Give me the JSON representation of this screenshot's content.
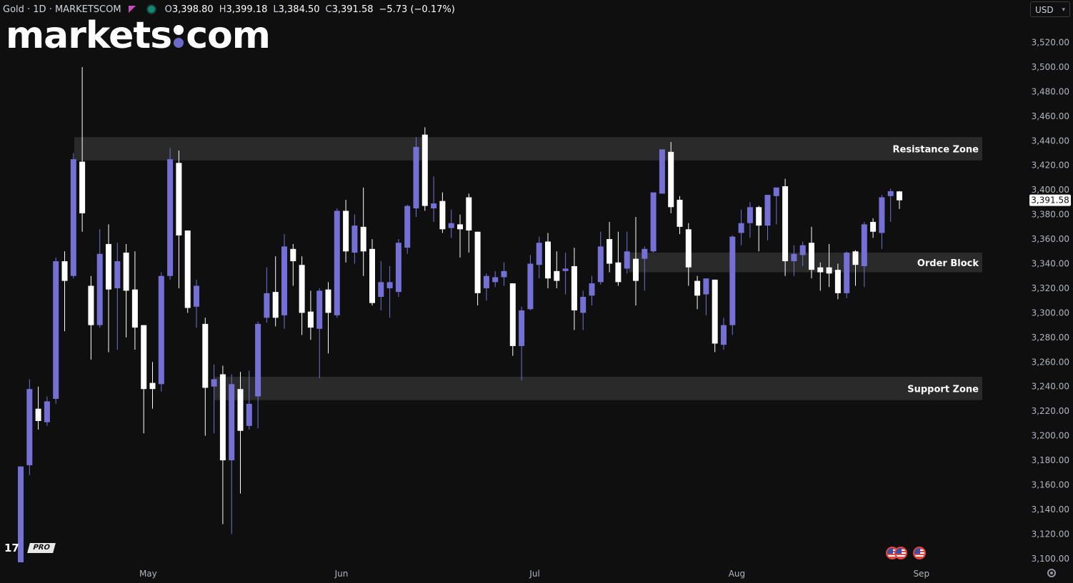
{
  "header": {
    "symbol": "Gold · 1D · MARKETSCOM",
    "open_label": "O",
    "open": "3,398.80",
    "high_label": "H",
    "high": "3,399.18",
    "low_label": "L",
    "low": "3,384.50",
    "close_label": "C",
    "close": "3,391.58",
    "change": "−5.73 (−0.17%)"
  },
  "logo": {
    "left": "markets",
    "right": "com"
  },
  "currency": {
    "value": "USD"
  },
  "watermark": {
    "pro_label": "PRO"
  },
  "colors": {
    "background": "#0f0f0f",
    "up_candle": "#7470d4",
    "down_candle": "#ffffff",
    "zone_fill": "#2a2a2a",
    "axis_text": "#b2b5be",
    "price_tag_bg": "#ffffff",
    "price_tag_text": "#111111"
  },
  "chart_data": {
    "type": "candlestick",
    "title": "Gold · 1D · MARKETSCOM",
    "xlabel": "",
    "ylabel": "",
    "ylim": [
      3096,
      3534
    ],
    "y_ticks": [
      3100,
      3120,
      3140,
      3160,
      3180,
      3200,
      3220,
      3240,
      3260,
      3280,
      3300,
      3320,
      3340,
      3360,
      3380,
      3400,
      3420,
      3440,
      3460,
      3480,
      3500,
      3520
    ],
    "x_ticks": [
      {
        "label": "May",
        "index": 14.5
      },
      {
        "label": "Jun",
        "index": 36.5
      },
      {
        "label": "Jul",
        "index": 58.5
      },
      {
        "label": "Aug",
        "index": 81.5
      },
      {
        "label": "Sep",
        "index": 102.5
      }
    ],
    "last_price": 3391.58,
    "last_price_label": "3,391.58",
    "zones": [
      {
        "name": "Resistance Zone",
        "low": 3424,
        "high": 3443
      },
      {
        "name": "Order Block",
        "low": 3333,
        "high": 3349
      },
      {
        "name": "Support Zone",
        "low": 3229,
        "high": 3248
      }
    ],
    "candles": [
      {
        "o": 3097,
        "h": 3175,
        "l": 3097,
        "c": 3175
      },
      {
        "o": 3176,
        "h": 3246,
        "l": 3168,
        "c": 3238
      },
      {
        "o": 3222,
        "h": 3240,
        "l": 3205,
        "c": 3212
      },
      {
        "o": 3211,
        "h": 3232,
        "l": 3208,
        "c": 3228
      },
      {
        "o": 3230,
        "h": 3345,
        "l": 3226,
        "c": 3342
      },
      {
        "o": 3342,
        "h": 3350,
        "l": 3285,
        "c": 3326
      },
      {
        "o": 3330,
        "h": 3430,
        "l": 3328,
        "c": 3425
      },
      {
        "o": 3423,
        "h": 3500,
        "l": 3366,
        "c": 3381
      },
      {
        "o": 3322,
        "h": 3330,
        "l": 3262,
        "c": 3290
      },
      {
        "o": 3290,
        "h": 3368,
        "l": 3288,
        "c": 3348
      },
      {
        "o": 3356,
        "h": 3372,
        "l": 3268,
        "c": 3319
      },
      {
        "o": 3320,
        "h": 3357,
        "l": 3270,
        "c": 3342
      },
      {
        "o": 3349,
        "h": 3356,
        "l": 3280,
        "c": 3318
      },
      {
        "o": 3319,
        "h": 3350,
        "l": 3270,
        "c": 3288
      },
      {
        "o": 3290,
        "h": 3290,
        "l": 3202,
        "c": 3238
      },
      {
        "o": 3243,
        "h": 3260,
        "l": 3222,
        "c": 3238
      },
      {
        "o": 3242,
        "h": 3333,
        "l": 3236,
        "c": 3330
      },
      {
        "o": 3330,
        "h": 3434,
        "l": 3327,
        "c": 3425
      },
      {
        "o": 3422,
        "h": 3432,
        "l": 3320,
        "c": 3363
      },
      {
        "o": 3367,
        "h": 3367,
        "l": 3300,
        "c": 3304
      },
      {
        "o": 3305,
        "h": 3327,
        "l": 3288,
        "c": 3322
      },
      {
        "o": 3291,
        "h": 3296,
        "l": 3200,
        "c": 3239
      },
      {
        "o": 3240,
        "h": 3258,
        "l": 3202,
        "c": 3246
      },
      {
        "o": 3250,
        "h": 3257,
        "l": 3128,
        "c": 3180
      },
      {
        "o": 3180,
        "h": 3250,
        "l": 3120,
        "c": 3242
      },
      {
        "o": 3238,
        "h": 3252,
        "l": 3153,
        "c": 3204
      },
      {
        "o": 3208,
        "h": 3253,
        "l": 3205,
        "c": 3226
      },
      {
        "o": 3232,
        "h": 3293,
        "l": 3206,
        "c": 3291
      },
      {
        "o": 3296,
        "h": 3337,
        "l": 3292,
        "c": 3316
      },
      {
        "o": 3317,
        "h": 3346,
        "l": 3289,
        "c": 3296
      },
      {
        "o": 3298,
        "h": 3364,
        "l": 3287,
        "c": 3354
      },
      {
        "o": 3352,
        "h": 3356,
        "l": 3322,
        "c": 3342
      },
      {
        "o": 3339,
        "h": 3346,
        "l": 3282,
        "c": 3300
      },
      {
        "o": 3301,
        "h": 3318,
        "l": 3278,
        "c": 3288
      },
      {
        "o": 3287,
        "h": 3320,
        "l": 3247,
        "c": 3318
      },
      {
        "o": 3319,
        "h": 3325,
        "l": 3267,
        "c": 3300
      },
      {
        "o": 3298,
        "h": 3385,
        "l": 3296,
        "c": 3383
      },
      {
        "o": 3383,
        "h": 3392,
        "l": 3341,
        "c": 3350
      },
      {
        "o": 3349,
        "h": 3380,
        "l": 3340,
        "c": 3371
      },
      {
        "o": 3370,
        "h": 3402,
        "l": 3330,
        "c": 3350
      },
      {
        "o": 3352,
        "h": 3360,
        "l": 3306,
        "c": 3308
      },
      {
        "o": 3313,
        "h": 3342,
        "l": 3302,
        "c": 3325
      },
      {
        "o": 3320,
        "h": 3338,
        "l": 3296,
        "c": 3325
      },
      {
        "o": 3317,
        "h": 3360,
        "l": 3313,
        "c": 3357
      },
      {
        "o": 3353,
        "h": 3388,
        "l": 3348,
        "c": 3387
      },
      {
        "o": 3385,
        "h": 3443,
        "l": 3378,
        "c": 3435
      },
      {
        "o": 3445,
        "h": 3451,
        "l": 3383,
        "c": 3387
      },
      {
        "o": 3385,
        "h": 3411,
        "l": 3374,
        "c": 3389
      },
      {
        "o": 3391,
        "h": 3398,
        "l": 3365,
        "c": 3368
      },
      {
        "o": 3369,
        "h": 3384,
        "l": 3361,
        "c": 3373
      },
      {
        "o": 3372,
        "h": 3380,
        "l": 3345,
        "c": 3368
      },
      {
        "o": 3394,
        "h": 3397,
        "l": 3349,
        "c": 3367
      },
      {
        "o": 3366,
        "h": 3366,
        "l": 3306,
        "c": 3316
      },
      {
        "o": 3320,
        "h": 3332,
        "l": 3310,
        "c": 3330
      },
      {
        "o": 3325,
        "h": 3334,
        "l": 3321,
        "c": 3329
      },
      {
        "o": 3329,
        "h": 3341,
        "l": 3322,
        "c": 3334
      },
      {
        "o": 3324,
        "h": 3324,
        "l": 3265,
        "c": 3273
      },
      {
        "o": 3273,
        "h": 3305,
        "l": 3245,
        "c": 3302
      },
      {
        "o": 3303,
        "h": 3347,
        "l": 3302,
        "c": 3340
      },
      {
        "o": 3339,
        "h": 3362,
        "l": 3328,
        "c": 3357
      },
      {
        "o": 3358,
        "h": 3365,
        "l": 3320,
        "c": 3328
      },
      {
        "o": 3334,
        "h": 3350,
        "l": 3320,
        "c": 3326
      },
      {
        "o": 3334,
        "h": 3349,
        "l": 3315,
        "c": 3336
      },
      {
        "o": 3338,
        "h": 3353,
        "l": 3286,
        "c": 3302
      },
      {
        "o": 3300,
        "h": 3318,
        "l": 3286,
        "c": 3313
      },
      {
        "o": 3314,
        "h": 3330,
        "l": 3306,
        "c": 3324
      },
      {
        "o": 3325,
        "h": 3366,
        "l": 3323,
        "c": 3354
      },
      {
        "o": 3360,
        "h": 3374,
        "l": 3333,
        "c": 3340
      },
      {
        "o": 3341,
        "h": 3366,
        "l": 3322,
        "c": 3325
      },
      {
        "o": 3336,
        "h": 3366,
        "l": 3332,
        "c": 3350
      },
      {
        "o": 3344,
        "h": 3378,
        "l": 3306,
        "c": 3326
      },
      {
        "o": 3344,
        "h": 3354,
        "l": 3318,
        "c": 3352
      },
      {
        "o": 3350,
        "h": 3397,
        "l": 3349,
        "c": 3398
      },
      {
        "o": 3397,
        "h": 3432,
        "l": 3397,
        "c": 3433
      },
      {
        "o": 3431,
        "h": 3439,
        "l": 3381,
        "c": 3386
      },
      {
        "o": 3392,
        "h": 3395,
        "l": 3364,
        "c": 3370
      },
      {
        "o": 3368,
        "h": 3373,
        "l": 3322,
        "c": 3337
      },
      {
        "o": 3326,
        "h": 3330,
        "l": 3303,
        "c": 3314
      },
      {
        "o": 3315,
        "h": 3325,
        "l": 3298,
        "c": 3328
      },
      {
        "o": 3327,
        "h": 3327,
        "l": 3268,
        "c": 3275
      },
      {
        "o": 3274,
        "h": 3296,
        "l": 3270,
        "c": 3290
      },
      {
        "o": 3290,
        "h": 3363,
        "l": 3282,
        "c": 3362
      },
      {
        "o": 3365,
        "h": 3384,
        "l": 3355,
        "c": 3373
      },
      {
        "o": 3373,
        "h": 3390,
        "l": 3361,
        "c": 3386
      },
      {
        "o": 3386,
        "h": 3387,
        "l": 3350,
        "c": 3371
      },
      {
        "o": 3371,
        "h": 3395,
        "l": 3359,
        "c": 3396
      },
      {
        "o": 3395,
        "h": 3402,
        "l": 3372,
        "c": 3402
      },
      {
        "o": 3403,
        "h": 3409,
        "l": 3330,
        "c": 3342
      },
      {
        "o": 3342,
        "h": 3355,
        "l": 3330,
        "c": 3348
      },
      {
        "o": 3347,
        "h": 3358,
        "l": 3338,
        "c": 3355
      },
      {
        "o": 3357,
        "h": 3370,
        "l": 3328,
        "c": 3335
      },
      {
        "o": 3337,
        "h": 3341,
        "l": 3318,
        "c": 3333
      },
      {
        "o": 3337,
        "h": 3356,
        "l": 3321,
        "c": 3332
      },
      {
        "o": 3335,
        "h": 3340,
        "l": 3311,
        "c": 3316
      },
      {
        "o": 3316,
        "h": 3350,
        "l": 3312,
        "c": 3349
      },
      {
        "o": 3350,
        "h": 3351,
        "l": 3322,
        "c": 3339
      },
      {
        "o": 3338,
        "h": 3374,
        "l": 3321,
        "c": 3372
      },
      {
        "o": 3374,
        "h": 3377,
        "l": 3361,
        "c": 3366
      },
      {
        "o": 3365,
        "h": 3396,
        "l": 3352,
        "c": 3394
      },
      {
        "o": 3395,
        "h": 3401,
        "l": 3374,
        "c": 3399
      },
      {
        "o": 3398.8,
        "h": 3399.18,
        "l": 3384.5,
        "c": 3391.58
      }
    ]
  }
}
